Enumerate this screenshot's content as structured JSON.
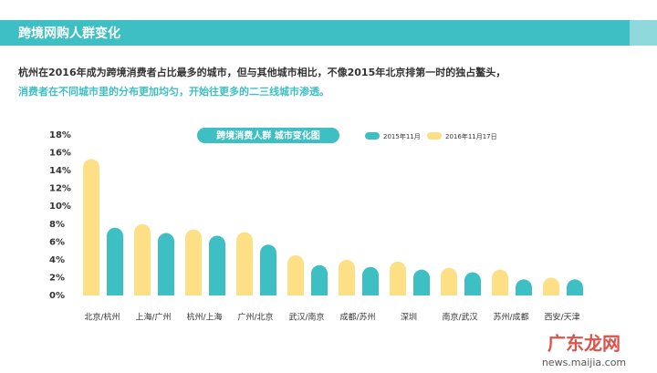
{
  "header": {
    "title": "跨境网购人群变化"
  },
  "intro": [
    "杭州在2016年成为跨境消费者占比最多的城市，但与其他城市相比，不像2015年北京排第一时的独占鳌头，",
    "消费者在不同城市里的分布更加均匀，开始往更多的二三线城市渗透。"
  ],
  "chart_data": {
    "type": "bar",
    "title": "跨境消费人群 城市变化图",
    "categories": [
      "北京/杭州",
      "上海/广州",
      "杭州/上海",
      "广州/北京",
      "武汉/南京",
      "成都/苏州",
      "深圳",
      "南京/武汉",
      "苏州/成都",
      "西安/天津"
    ],
    "series": [
      {
        "name": "2015年11月",
        "color": "#3dbfc3",
        "values": [
          7.6,
          7.0,
          6.7,
          5.7,
          3.4,
          3.2,
          2.9,
          2.6,
          1.8,
          1.8
        ]
      },
      {
        "name": "2016年11月17日",
        "color": "#fddf85",
        "values": [
          15.3,
          8.0,
          7.4,
          7.1,
          4.5,
          4.0,
          3.8,
          3.1,
          2.9,
          2.0
        ]
      }
    ],
    "ylim": [
      0,
      18
    ],
    "yticks": [
      {
        "value": 0,
        "label": "0%"
      },
      {
        "value": 2,
        "label": "2%"
      },
      {
        "value": 4,
        "label": "4%"
      },
      {
        "value": 6,
        "label": "6%"
      },
      {
        "value": 8,
        "label": "8%"
      },
      {
        "value": 10,
        "label": "10%"
      },
      {
        "value": 12,
        "label": "12%"
      },
      {
        "value": 14,
        "label": "14%"
      },
      {
        "value": 16,
        "label": "16%"
      },
      {
        "value": 18,
        "label": "18%"
      }
    ],
    "grid": false
  },
  "watermark": {
    "brand": "广东龙网",
    "url": "news.maijia.com"
  }
}
